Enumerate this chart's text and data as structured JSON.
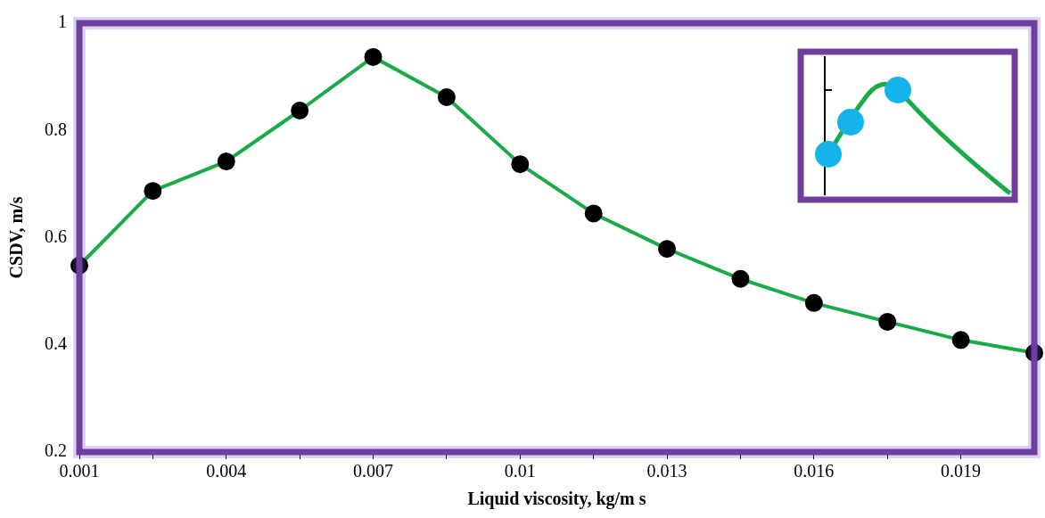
{
  "chart_data": {
    "type": "line",
    "xlabel": "Liquid viscosity, kg/m s",
    "ylabel": "CSDV, m/s",
    "x": [
      0.001,
      0.0025,
      0.004,
      0.0055,
      0.007,
      0.0085,
      0.01,
      0.0115,
      0.013,
      0.0145,
      0.016,
      0.0175,
      0.019,
      0.0205
    ],
    "series": [
      {
        "color": "#1aaa48",
        "values": [
          0.548,
          0.687,
          0.742,
          0.837,
          0.937,
          0.862,
          0.737,
          0.645,
          0.579,
          0.523,
          0.478,
          0.443,
          0.409,
          0.385
        ]
      }
    ],
    "xlim": [
      0.001,
      0.0205
    ],
    "xticks": [
      0.001,
      {
        "value": 0.0025,
        "label": null
      },
      0.004,
      {
        "value": 0.0055,
        "label": null
      },
      0.007,
      {
        "value": 0.0085,
        "label": null
      },
      0.01,
      {
        "value": 0.0115,
        "label": null
      },
      0.013,
      {
        "value": 0.0145,
        "label": null
      },
      0.016,
      {
        "value": 0.0175,
        "label": null
      },
      0.019
    ],
    "ylim": [
      0.2,
      1
    ],
    "yticks": [
      0.2,
      0.4,
      0.6,
      0.8,
      1
    ],
    "grid": false,
    "legend": false,
    "marker": "circle",
    "line_style": "solid"
  }
}
